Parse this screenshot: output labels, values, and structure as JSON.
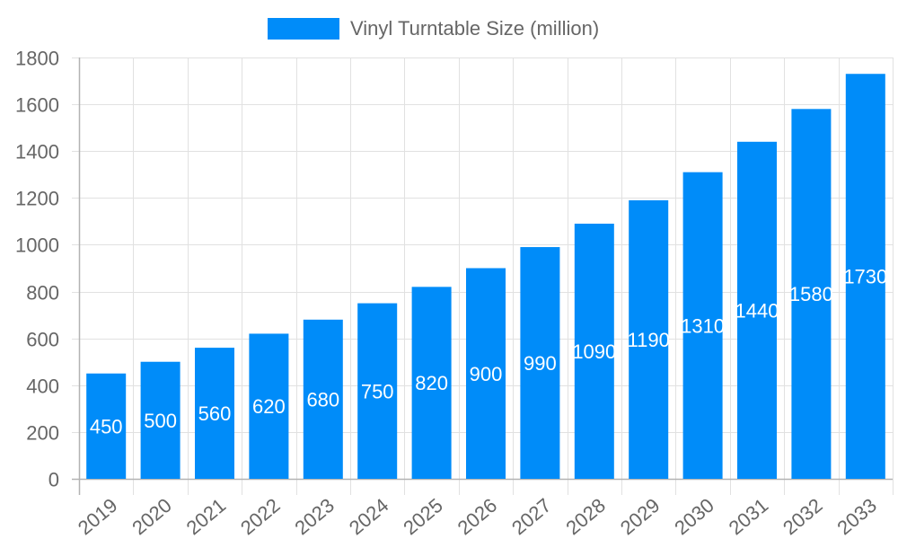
{
  "chart_data": {
    "type": "bar",
    "title": "",
    "xlabel": "",
    "ylabel": "",
    "legend": {
      "position": "top",
      "entries": [
        "Vinyl Turntable Size (million)"
      ]
    },
    "categories": [
      "2019",
      "2020",
      "2021",
      "2022",
      "2023",
      "2024",
      "2025",
      "2026",
      "2027",
      "2028",
      "2029",
      "2030",
      "2031",
      "2032",
      "2033"
    ],
    "series": [
      {
        "name": "Vinyl Turntable Size (million)",
        "color": "#008cf9",
        "values": [
          450,
          500,
          560,
          620,
          680,
          750,
          820,
          900,
          990,
          1090,
          1190,
          1310,
          1440,
          1580,
          1730
        ]
      }
    ],
    "ylim": [
      0,
      1800
    ],
    "yticks": [
      0,
      200,
      400,
      600,
      800,
      1000,
      1200,
      1400,
      1600,
      1800
    ],
    "grid": true,
    "data_labels": true
  },
  "legend": {
    "label": "Vinyl Turntable Size (million)"
  }
}
